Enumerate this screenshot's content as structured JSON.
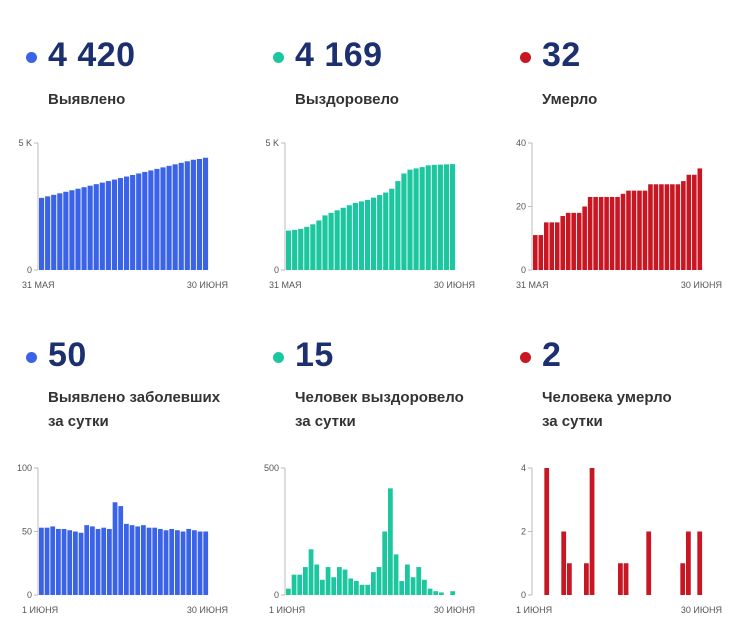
{
  "panels": [
    {
      "value": "4 420",
      "label_line1": "Выявлено",
      "label_line2": "",
      "color": "#3a63e8",
      "chart_data": {
        "type": "bar",
        "ylim": [
          0,
          5000
        ],
        "yticks": [
          {
            "v": 0,
            "t": "0"
          },
          {
            "v": 5000,
            "t": "5 K"
          }
        ],
        "xlabels": [
          "31 МАЯ",
          "30 ИЮНЯ"
        ],
        "values": [
          2840,
          2900,
          2960,
          3020,
          3080,
          3140,
          3200,
          3260,
          3320,
          3380,
          3440,
          3500,
          3560,
          3620,
          3680,
          3740,
          3800,
          3860,
          3920,
          3980,
          4040,
          4100,
          4160,
          4220,
          4280,
          4340,
          4370,
          4420
        ]
      }
    },
    {
      "value": "4 169",
      "label_line1": "Выздоровело",
      "label_line2": "",
      "color": "#1cc7a0",
      "chart_data": {
        "type": "bar",
        "ylim": [
          0,
          5000
        ],
        "yticks": [
          {
            "v": 0,
            "t": "0"
          },
          {
            "v": 5000,
            "t": "5 K"
          }
        ],
        "xlabels": [
          "31 МАЯ",
          "30 ИЮНЯ"
        ],
        "values": [
          1550,
          1580,
          1620,
          1700,
          1800,
          1950,
          2150,
          2250,
          2350,
          2450,
          2550,
          2640,
          2700,
          2760,
          2850,
          2950,
          3050,
          3200,
          3500,
          3800,
          3950,
          4000,
          4050,
          4120,
          4140,
          4150,
          4160,
          4169
        ]
      }
    },
    {
      "value": "32",
      "label_line1": "Умерло",
      "label_line2": "",
      "color": "#c81623",
      "chart_data": {
        "type": "bar",
        "ylim": [
          0,
          40
        ],
        "yticks": [
          {
            "v": 0,
            "t": "0"
          },
          {
            "v": 20,
            "t": "20"
          },
          {
            "v": 40,
            "t": "40"
          }
        ],
        "xlabels": [
          "31 МАЯ",
          "30 ИЮНЯ"
        ],
        "values": [
          11,
          11,
          15,
          15,
          15,
          17,
          18,
          18,
          18,
          20,
          23,
          23,
          23,
          23,
          23,
          23,
          24,
          25,
          25,
          25,
          25,
          27,
          27,
          27,
          27,
          27,
          27,
          28,
          30,
          30,
          32
        ]
      }
    },
    {
      "value": "50",
      "label_line1": "Выявлено заболевших",
      "label_line2": "за сутки",
      "color": "#3a63e8",
      "chart_data": {
        "type": "bar",
        "ylim": [
          0,
          100
        ],
        "yticks": [
          {
            "v": 0,
            "t": "0"
          },
          {
            "v": 50,
            "t": "50"
          },
          {
            "v": 100,
            "t": "100"
          }
        ],
        "xlabels": [
          "1 ИЮНЯ",
          "30 ИЮНЯ"
        ],
        "values": [
          53,
          53,
          54,
          52,
          52,
          51,
          50,
          49,
          55,
          54,
          52,
          53,
          52,
          73,
          70,
          56,
          55,
          54,
          55,
          53,
          53,
          52,
          51,
          52,
          51,
          50,
          52,
          51,
          50,
          50
        ]
      }
    },
    {
      "value": "15",
      "label_line1": "Человек выздоровело",
      "label_line2": "за сутки",
      "color": "#1cc7a0",
      "chart_data": {
        "type": "bar",
        "ylim": [
          0,
          500
        ],
        "yticks": [
          {
            "v": 0,
            "t": "0"
          },
          {
            "v": 500,
            "t": "500"
          }
        ],
        "xlabels": [
          "1 ИЮНЯ",
          "30 ИЮНЯ"
        ],
        "values": [
          25,
          80,
          80,
          110,
          180,
          120,
          60,
          110,
          70,
          110,
          100,
          65,
          55,
          40,
          40,
          90,
          110,
          250,
          420,
          160,
          55,
          120,
          70,
          110,
          60,
          25,
          15,
          10,
          0,
          15
        ]
      }
    },
    {
      "value": "2",
      "label_line1": "Человека умерло",
      "label_line2": "за сутки",
      "color": "#c81623",
      "chart_data": {
        "type": "bar",
        "ylim": [
          0,
          4
        ],
        "yticks": [
          {
            "v": 0,
            "t": "0"
          },
          {
            "v": 2,
            "t": "2"
          },
          {
            "v": 4,
            "t": "4"
          }
        ],
        "xlabels": [
          "1 ИЮНЯ",
          "30 ИЮНЯ"
        ],
        "values": [
          0,
          0,
          4,
          0,
          0,
          2,
          1,
          0,
          0,
          1,
          4,
          0,
          0,
          0,
          0,
          1,
          1,
          0,
          0,
          0,
          2,
          0,
          0,
          0,
          0,
          0,
          1,
          2,
          0,
          2
        ]
      }
    }
  ]
}
